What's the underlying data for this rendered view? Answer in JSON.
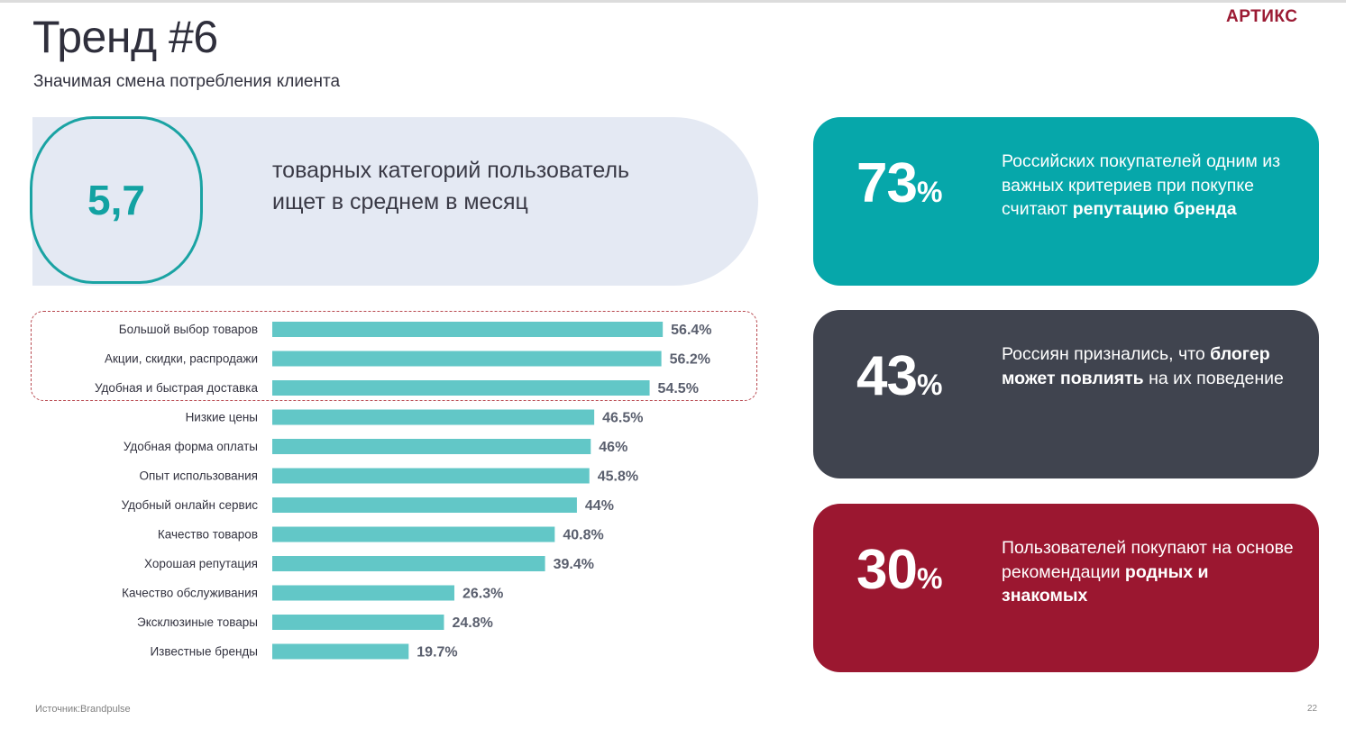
{
  "header": {
    "title": "Тренд #6",
    "subtitle": "Значимая смена потребления клиента",
    "logo": "АРТИКС"
  },
  "highlight_stat": {
    "value": "5,7",
    "text_line1": "товарных категорий пользователь",
    "text_line2": "ищет в среднем в месяц"
  },
  "cards": [
    {
      "value": "73",
      "unit": "%",
      "text_plain_1": "Российских покупателей одним из важных критериев при покупке считают ",
      "text_bold_1": "репутацию бренда",
      "text_plain_2": "",
      "text_bold_2": "",
      "color": "#06a7aa"
    },
    {
      "value": "43",
      "unit": "%",
      "text_plain_1": "Россиян признались, что ",
      "text_bold_1": "блогер может повлиять",
      "text_plain_2": " на их поведение",
      "text_bold_2": "",
      "color": "#40444f"
    },
    {
      "value": "30",
      "unit": "%",
      "text_plain_1": "Пользователей покупают на основе рекомендации ",
      "text_bold_1": "родных и знакомых",
      "text_plain_2": "",
      "text_bold_2": "",
      "color": "#9b1730"
    }
  ],
  "chart_data": {
    "type": "bar",
    "orientation": "horizontal",
    "title": "",
    "xlabel": "",
    "ylabel": "",
    "xlim": [
      0,
      100
    ],
    "grid": false,
    "categories": [
      "Большой выбор товаров",
      "Акции, скидки, распродажи",
      "Удобная и быстрая доставка",
      "Низкие цены",
      "Удобная форма оплаты",
      "Опыт использования",
      "Удобный онлайн сервис",
      "Качество товаров",
      "Хорошая репутация",
      "Качество обслуживания",
      "Эксклюзиные товары",
      "Известные бренды"
    ],
    "values": [
      56.4,
      56.2,
      54.5,
      46.5,
      46,
      45.8,
      44,
      40.8,
      39.4,
      26.3,
      24.8,
      19.7
    ],
    "value_labels": [
      "56.4%",
      "56.2%",
      "54.5%",
      "46.5%",
      "46%",
      "45.8%",
      "44%",
      "40.8%",
      "39.4%",
      "26.3%",
      "24.8%",
      "19.7%"
    ],
    "highlighted_top_n": 3,
    "bar_color": "#62c7c7"
  },
  "footer": {
    "source": "Источник:Brandpulse",
    "page_number": "22"
  }
}
